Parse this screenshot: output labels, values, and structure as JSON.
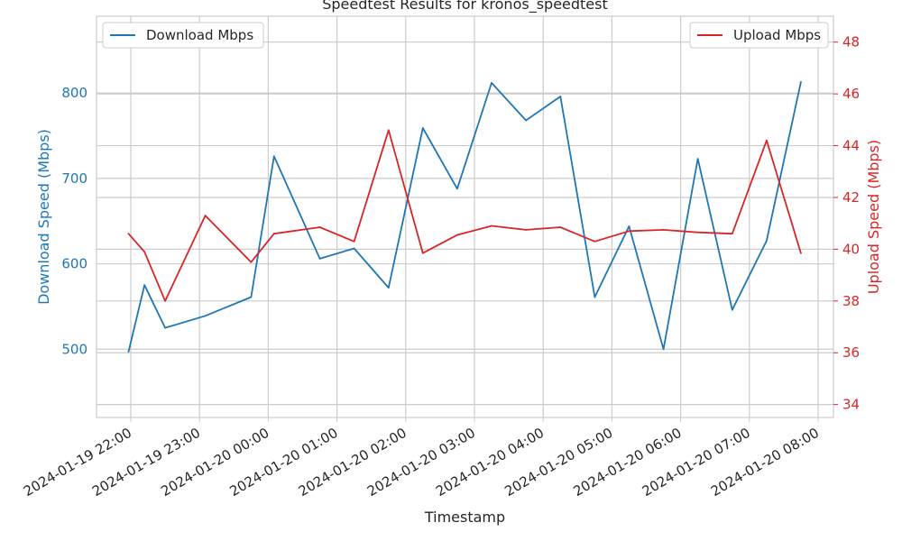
{
  "chart_data": {
    "type": "line",
    "title": "Speedtest Results for kronos_speedtest",
    "xlabel": "Timestamp",
    "ylabel_left": "Download Speed (Mbps)",
    "ylabel_right": "Upload Speed (Mbps)",
    "x_start": "2024-01-19 22:00",
    "x_end": "2024-01-20 08:00",
    "x_tick_labels": [
      "2024-01-19 22:00",
      "2024-01-19 23:00",
      "2024-01-20 00:00",
      "2024-01-20 01:00",
      "2024-01-20 02:00",
      "2024-01-20 03:00",
      "2024-01-20 04:00",
      "2024-01-20 05:00",
      "2024-01-20 06:00",
      "2024-01-20 07:00",
      "2024-01-20 08:00"
    ],
    "ylim_left": [
      420,
      890
    ],
    "ylim_right": [
      33.5,
      49
    ],
    "yticks_left": [
      500,
      600,
      700,
      800
    ],
    "yticks_right": [
      34,
      36,
      38,
      40,
      42,
      44,
      46,
      48
    ],
    "grid": true,
    "colors": {
      "download": "#1f77b4",
      "upload": "#d62728",
      "grid": "#cccccc",
      "text": "#262626"
    },
    "legend_left": {
      "label": "Download Mbps",
      "position": "upper-left"
    },
    "legend_right": {
      "label": "Upload Mbps",
      "position": "upper-right"
    },
    "x": [
      "2024-01-19 21:58",
      "2024-01-19 22:12",
      "2024-01-19 22:30",
      "2024-01-19 23:05",
      "2024-01-19 23:45",
      "2024-01-20 00:05",
      "2024-01-20 00:45",
      "2024-01-20 01:15",
      "2024-01-20 01:45",
      "2024-01-20 02:15",
      "2024-01-20 02:45",
      "2024-01-20 03:15",
      "2024-01-20 03:45",
      "2024-01-20 04:15",
      "2024-01-20 04:45",
      "2024-01-20 05:15",
      "2024-01-20 05:45",
      "2024-01-20 06:15",
      "2024-01-20 06:45",
      "2024-01-20 07:15",
      "2024-01-20 07:45"
    ],
    "series": [
      {
        "name": "Download Mbps",
        "axis": "left",
        "values": [
          497,
          575,
          525,
          539,
          561,
          726,
          606,
          618,
          572,
          759,
          688,
          812,
          768,
          796,
          561,
          644,
          500,
          723,
          546,
          627,
          813
        ]
      },
      {
        "name": "Upload Mbps",
        "axis": "right",
        "values": [
          40.6,
          39.9,
          38.0,
          41.3,
          39.5,
          40.6,
          40.85,
          40.3,
          44.6,
          39.85,
          40.55,
          40.9,
          40.75,
          40.85,
          40.3,
          40.7,
          40.75,
          40.65,
          40.6,
          44.2,
          39.85
        ]
      }
    ]
  }
}
